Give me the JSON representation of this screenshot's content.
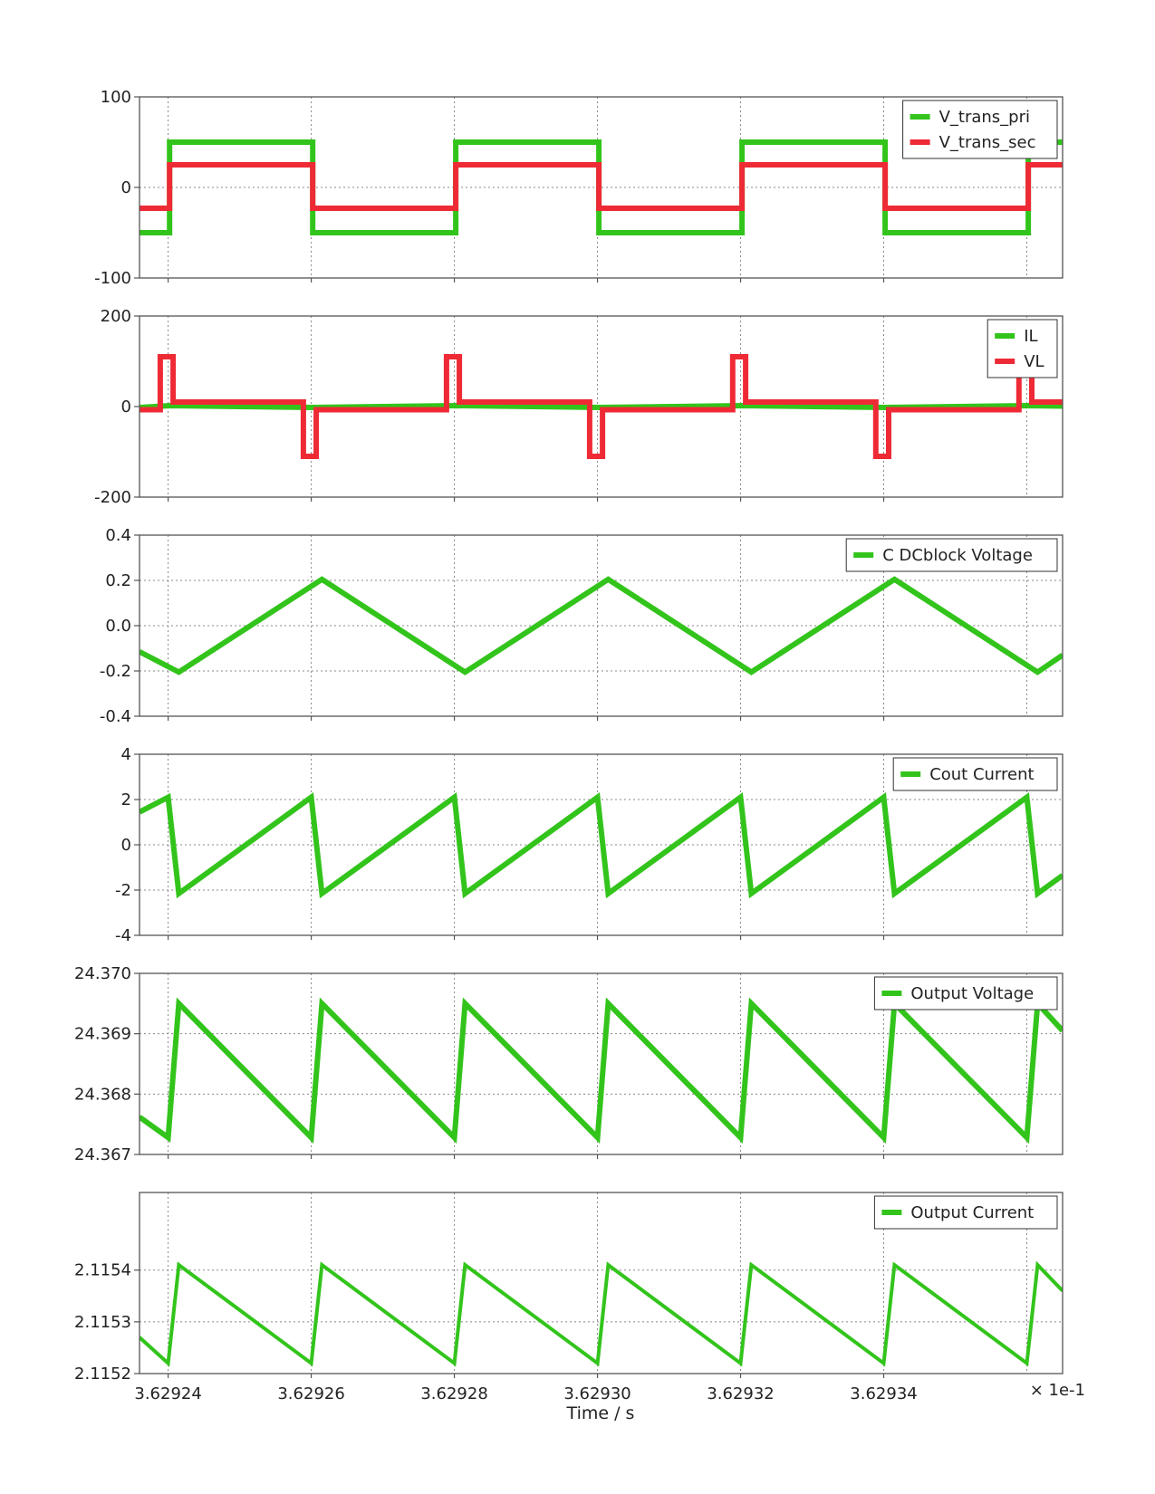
{
  "colors": {
    "green": "#33c41c",
    "red": "#ee2a35",
    "grid": "#888888",
    "frame": "#555555"
  },
  "x_axis": {
    "label": "Time / s",
    "multiplier": "× 1e-1",
    "ticks": [
      "3.62924",
      "3.62926",
      "3.62928",
      "3.62930",
      "3.62932",
      "3.62934"
    ],
    "extra_gridline": 3.62936
  },
  "chart_data": [
    {
      "type": "line",
      "ylim": [
        -100,
        100
      ],
      "yticks": [
        "100",
        "0",
        "-100"
      ],
      "grid": true,
      "legend": "top-right",
      "x_unit_scale": 0.1,
      "series": [
        {
          "name": "V_trans_pri",
          "color": "green",
          "points": [
            [
              3.629236,
              -50
            ],
            [
              3.6292402,
              -50
            ],
            [
              3.6292402,
              50
            ],
            [
              3.6292602,
              50
            ],
            [
              3.6292602,
              -50
            ],
            [
              3.6292802,
              -50
            ],
            [
              3.6292802,
              50
            ],
            [
              3.6293002,
              50
            ],
            [
              3.6293002,
              -50
            ],
            [
              3.6293202,
              -50
            ],
            [
              3.6293202,
              50
            ],
            [
              3.6293402,
              50
            ],
            [
              3.6293402,
              -50
            ],
            [
              3.6293602,
              -50
            ],
            [
              3.6293602,
              50
            ],
            [
              3.629365,
              50
            ]
          ]
        },
        {
          "name": "V_trans_sec",
          "color": "red",
          "points": [
            [
              3.629236,
              -23
            ],
            [
              3.6292402,
              -23
            ],
            [
              3.6292402,
              25
            ],
            [
              3.6292602,
              25
            ],
            [
              3.6292602,
              -23
            ],
            [
              3.6292802,
              -23
            ],
            [
              3.6292802,
              25
            ],
            [
              3.6293002,
              25
            ],
            [
              3.6293002,
              -23
            ],
            [
              3.6293202,
              -23
            ],
            [
              3.6293202,
              25
            ],
            [
              3.6293402,
              25
            ],
            [
              3.6293402,
              -23
            ],
            [
              3.6293602,
              -23
            ],
            [
              3.6293602,
              25
            ],
            [
              3.629365,
              25
            ]
          ]
        }
      ]
    },
    {
      "type": "line",
      "ylim": [
        -200,
        200
      ],
      "yticks": [
        "200",
        "0",
        "-200"
      ],
      "grid": true,
      "legend": "top-right",
      "series": [
        {
          "name": "IL",
          "color": "green",
          "points": [
            [
              3.629236,
              -2
            ],
            [
              3.6292402,
              2
            ],
            [
              3.6292602,
              -2
            ],
            [
              3.6292802,
              2
            ],
            [
              3.6293002,
              -2
            ],
            [
              3.6293202,
              2
            ],
            [
              3.6293402,
              -2
            ],
            [
              3.6293602,
              2
            ],
            [
              3.629365,
              1
            ]
          ]
        },
        {
          "name": "VL",
          "color": "red",
          "points": [
            [
              3.629236,
              -7
            ],
            [
              3.6292389,
              -7
            ],
            [
              3.6292389,
              110
            ],
            [
              3.6292407,
              110
            ],
            [
              3.6292407,
              10
            ],
            [
              3.6292589,
              10
            ],
            [
              3.6292589,
              -110
            ],
            [
              3.6292607,
              -110
            ],
            [
              3.6292607,
              -7
            ],
            [
              3.6292789,
              -7
            ],
            [
              3.6292789,
              110
            ],
            [
              3.6292807,
              110
            ],
            [
              3.6292807,
              10
            ],
            [
              3.6292989,
              10
            ],
            [
              3.6292989,
              -110
            ],
            [
              3.6293007,
              -110
            ],
            [
              3.6293007,
              -7
            ],
            [
              3.6293189,
              -7
            ],
            [
              3.6293189,
              110
            ],
            [
              3.6293207,
              110
            ],
            [
              3.6293207,
              10
            ],
            [
              3.6293389,
              10
            ],
            [
              3.6293389,
              -110
            ],
            [
              3.6293407,
              -110
            ],
            [
              3.6293407,
              -7
            ],
            [
              3.6293589,
              -7
            ],
            [
              3.6293589,
              110
            ],
            [
              3.6293607,
              110
            ],
            [
              3.6293607,
              10
            ],
            [
              3.629365,
              10
            ]
          ]
        }
      ]
    },
    {
      "type": "line",
      "ylim": [
        -0.4,
        0.4
      ],
      "yticks": [
        "0.4",
        "0.2",
        "0.0",
        "-0.2",
        "-0.4"
      ],
      "grid": true,
      "legend": "top-right",
      "series": [
        {
          "name": "C DCblock Voltage",
          "color": "green",
          "points": [
            [
              3.629236,
              -0.115
            ],
            [
              3.6292415,
              -0.205
            ],
            [
              3.6292615,
              0.205
            ],
            [
              3.6292815,
              -0.205
            ],
            [
              3.6293015,
              0.205
            ],
            [
              3.6293215,
              -0.205
            ],
            [
              3.6293415,
              0.205
            ],
            [
              3.6293615,
              -0.205
            ],
            [
              3.629365,
              -0.13
            ]
          ]
        }
      ]
    },
    {
      "type": "line",
      "ylim": [
        -4,
        4
      ],
      "yticks": [
        "4",
        "2",
        "0",
        "-2",
        "-4"
      ],
      "grid": true,
      "legend": "top-right",
      "series": [
        {
          "name": "Cout Current",
          "color": "green",
          "points": [
            [
              3.629236,
              1.45
            ],
            [
              3.62924,
              2.1
            ],
            [
              3.6292415,
              -2.15
            ],
            [
              3.62926,
              2.1
            ],
            [
              3.6292615,
              -2.15
            ],
            [
              3.62928,
              2.1
            ],
            [
              3.6292815,
              -2.15
            ],
            [
              3.6293,
              2.1
            ],
            [
              3.6293015,
              -2.15
            ],
            [
              3.62932,
              2.1
            ],
            [
              3.6293215,
              -2.15
            ],
            [
              3.62934,
              2.1
            ],
            [
              3.6293415,
              -2.15
            ],
            [
              3.62936,
              2.1
            ],
            [
              3.6293615,
              -2.15
            ],
            [
              3.629365,
              -1.35
            ]
          ]
        }
      ]
    },
    {
      "type": "line",
      "ylim": [
        24.367,
        24.37
      ],
      "yticks": [
        "24.370",
        "24.369",
        "24.368",
        "24.367"
      ],
      "grid": true,
      "legend": "top-right",
      "series": [
        {
          "name": "Output Voltage",
          "color": "green",
          "points": [
            [
              3.629236,
              24.36762
            ],
            [
              3.62924,
              24.36728
            ],
            [
              3.6292415,
              24.3695
            ],
            [
              3.62926,
              24.36728
            ],
            [
              3.6292615,
              24.3695
            ],
            [
              3.62928,
              24.36728
            ],
            [
              3.6292815,
              24.3695
            ],
            [
              3.6293,
              24.36728
            ],
            [
              3.6293015,
              24.3695
            ],
            [
              3.62932,
              24.36728
            ],
            [
              3.6293215,
              24.3695
            ],
            [
              3.62934,
              24.36728
            ],
            [
              3.6293415,
              24.3695
            ],
            [
              3.62936,
              24.36728
            ],
            [
              3.6293615,
              24.3695
            ],
            [
              3.629365,
              24.36905
            ]
          ]
        }
      ]
    },
    {
      "type": "line",
      "ylim": [
        2.1152,
        2.11555
      ],
      "yticks": [
        "2.1154",
        "2.1153",
        "2.1152"
      ],
      "ytick_values": [
        2.1154,
        2.1153,
        2.1152
      ],
      "grid": true,
      "legend": "top-right",
      "series": [
        {
          "name": "Output Current",
          "color": "green",
          "points": [
            [
              3.629236,
              2.11527
            ],
            [
              3.62924,
              2.11522
            ],
            [
              3.6292415,
              2.11541
            ],
            [
              3.62926,
              2.11522
            ],
            [
              3.6292615,
              2.11541
            ],
            [
              3.62928,
              2.11522
            ],
            [
              3.6292815,
              2.11541
            ],
            [
              3.6293,
              2.11522
            ],
            [
              3.6293015,
              2.11541
            ],
            [
              3.62932,
              2.11522
            ],
            [
              3.6293215,
              2.11541
            ],
            [
              3.62934,
              2.11522
            ],
            [
              3.6293415,
              2.11541
            ],
            [
              3.62936,
              2.11522
            ],
            [
              3.6293615,
              2.11541
            ],
            [
              3.629365,
              2.11536
            ]
          ]
        }
      ]
    }
  ]
}
